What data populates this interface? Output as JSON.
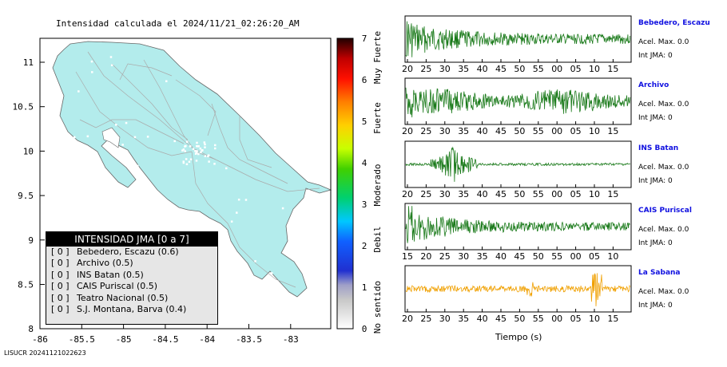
{
  "map": {
    "title": "Intensidad calculada el 2024/11/21_02:26:20_AM",
    "lat_ticks": [
      "11",
      "10.5",
      "10",
      "9.5",
      "9",
      "8.5",
      "8"
    ],
    "lon_ticks": [
      "-86",
      "-85.5",
      "-85",
      "-84.5",
      "-84",
      "-83.5",
      "-83"
    ],
    "land_color": "#b3ecec",
    "road_color": "#aaaaaa"
  },
  "legend": {
    "title": "INTENSIDAD JMA [0 a 7]",
    "rows": [
      {
        "value": "[ 0 ]",
        "label": "Bebedero, Escazu (0.6)"
      },
      {
        "value": "[ 0 ]",
        "label": "Archivo (0.5)"
      },
      {
        "value": "[ 0 ]",
        "label": "INS Batan (0.5)"
      },
      {
        "value": "[ 0 ]",
        "label": "CAIS Puriscal (0.5)"
      },
      {
        "value": "[ 0 ]",
        "label": "Teatro Nacional (0.5)"
      },
      {
        "value": "[ 0 ]",
        "label": "S.J. Montana, Barva (0.4)"
      }
    ]
  },
  "scale": {
    "ticks": [
      "0",
      "1",
      "2",
      "3",
      "4",
      "5",
      "6",
      "7"
    ],
    "categories": [
      "No sentido",
      "Debil",
      "Moderado",
      "Fuerte",
      "Muy Fuerte"
    ]
  },
  "footer": {
    "id": "LISUCR 20241121022623"
  },
  "waveforms": {
    "x_title": "Tiempo (s)",
    "stations": [
      {
        "name": "Bebedero, Escazu",
        "accel": "Acel. Max. 0.0",
        "int": "Int JMA: 0",
        "color": "#1a7a1a",
        "ticks": [
          "20",
          "25",
          "30",
          "35",
          "40",
          "45",
          "50",
          "55",
          "00",
          "05",
          "10",
          "15"
        ]
      },
      {
        "name": "Archivo",
        "accel": "Acel. Max. 0.0",
        "int": "Int JMA: 0",
        "color": "#1a7a1a",
        "ticks": [
          "20",
          "25",
          "30",
          "35",
          "40",
          "45",
          "50",
          "55",
          "00",
          "05",
          "10",
          "15"
        ]
      },
      {
        "name": "INS Batan",
        "accel": "Acel. Max. 0.0",
        "int": "Int JMA: 0",
        "color": "#1a7a1a",
        "ticks": [
          "20",
          "25",
          "30",
          "35",
          "40",
          "45",
          "50",
          "55",
          "00",
          "05",
          "10",
          "15"
        ]
      },
      {
        "name": "CAIS Puriscal",
        "accel": "Acel. Max. 0.0",
        "int": "Int JMA: 0",
        "color": "#1a7a1a",
        "ticks": [
          "15",
          "20",
          "25",
          "30",
          "35",
          "40",
          "45",
          "50",
          "55",
          "00",
          "05",
          "10"
        ]
      },
      {
        "name": "La Sabana",
        "accel": "Acel. Max. 0.0",
        "int": "Int JMA: 0",
        "color": "#f0a000",
        "ticks": [
          "20",
          "25",
          "30",
          "35",
          "40",
          "45",
          "50",
          "55",
          "00",
          "05",
          "10",
          "15"
        ]
      }
    ]
  }
}
